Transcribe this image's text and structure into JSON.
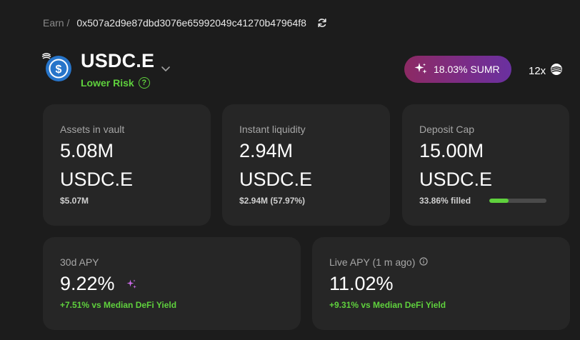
{
  "breadcrumb": {
    "root": "Earn /",
    "address": "0x507a2d9e87dbd3076e65992049c41270b47964f8"
  },
  "token": {
    "name": "USDC.E",
    "risk": "Lower Risk",
    "help": "?"
  },
  "rewards": {
    "sumr_label": "18.03% SUMR",
    "multiplier": "12x"
  },
  "stats": {
    "assets": {
      "label": "Assets in vault",
      "value": "5.08M",
      "unit": "USDC.E",
      "sub": "$5.07M"
    },
    "liquidity": {
      "label": "Instant liquidity",
      "value": "2.94M",
      "unit": "USDC.E",
      "sub": "$2.94M (57.97%)"
    },
    "cap": {
      "label": "Deposit Cap",
      "value": "15.00M",
      "unit": "USDC.E",
      "sub": "33.86% filled",
      "fill_fraction": 0.3386
    }
  },
  "apy": {
    "thirty": {
      "label": "30d APY",
      "value": "9.22%",
      "sub": "+7.51% vs Median DeFi Yield"
    },
    "live": {
      "label": "Live APY (1 m ago)",
      "value": "11.02%",
      "sub": "+9.31% vs Median DeFi Yield"
    }
  },
  "colors": {
    "background": "#1c1c1c",
    "card": "#262626",
    "green": "#5fd13d",
    "usdc_blue": "#2775ca",
    "pill_start": "#8c2a63",
    "pill_end": "#6a31a0"
  },
  "icons": {
    "refresh": "refresh-icon",
    "chevron": "chevron-down-icon",
    "sparkle": "sparkle-icon",
    "info": "info-icon",
    "summer": "summer-logo-icon",
    "usdc": "usdc-logo-icon"
  }
}
